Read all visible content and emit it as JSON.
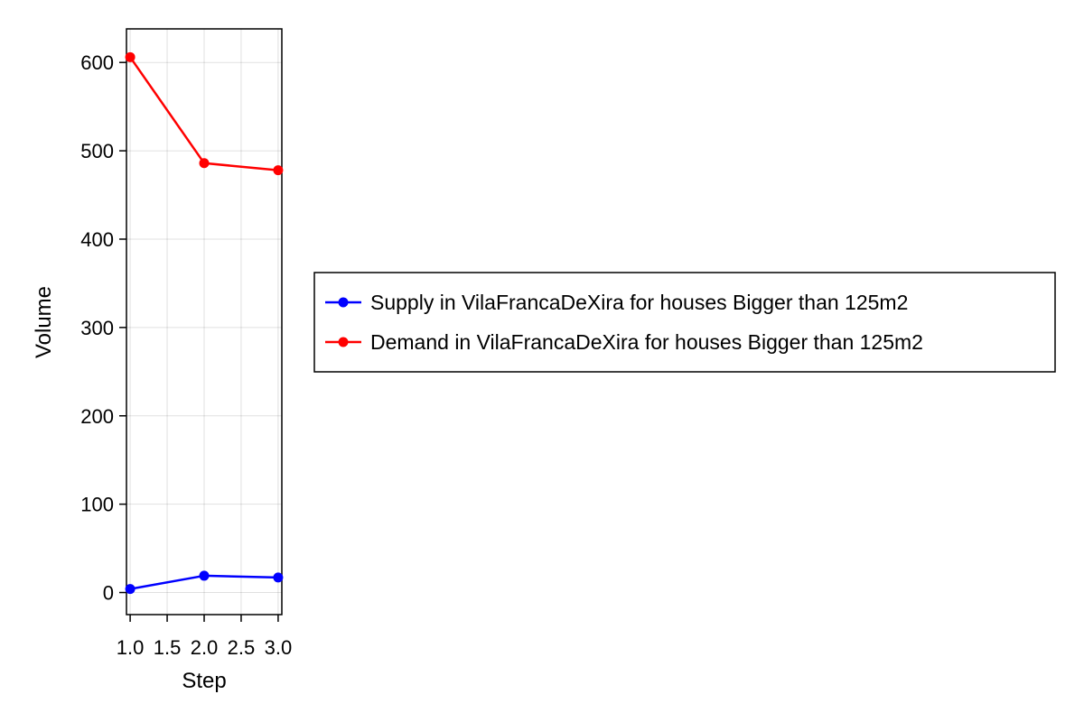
{
  "chart_data": {
    "type": "line",
    "title": "",
    "xlabel": "Step",
    "ylabel": "Volume",
    "xlim": [
      0.95,
      3.05
    ],
    "ylim": [
      -25,
      638
    ],
    "x_ticks": [
      1.0,
      1.5,
      2.0,
      2.5,
      3.0
    ],
    "x_tick_labels": [
      "1.0",
      "1.5",
      "2.0",
      "2.5",
      "3.0"
    ],
    "y_ticks": [
      0,
      100,
      200,
      300,
      400,
      500,
      600
    ],
    "y_tick_labels": [
      "0",
      "100",
      "200",
      "300",
      "400",
      "500",
      "600"
    ],
    "grid": true,
    "legend_position": "right",
    "series": [
      {
        "name": "Supply in VilaFrancaDeXira for houses Bigger than 125m2",
        "color": "#0000ff",
        "x": [
          1,
          2,
          3
        ],
        "y": [
          4,
          19,
          17
        ]
      },
      {
        "name": "Demand in VilaFrancaDeXira for houses Bigger than 125m2",
        "color": "#ff0000",
        "x": [
          1,
          2,
          3
        ],
        "y": [
          606,
          486,
          478
        ]
      }
    ]
  }
}
